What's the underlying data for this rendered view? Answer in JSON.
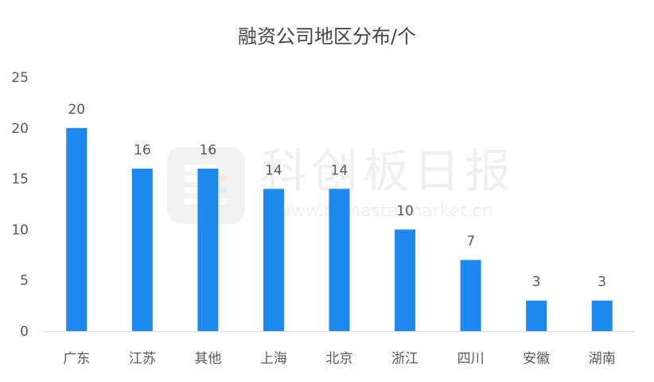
{
  "chart_data": {
    "type": "bar",
    "title": "融资公司地区分布/个",
    "categories": [
      "广东",
      "江苏",
      "其他",
      "上海",
      "北京",
      "浙江",
      "四川",
      "安徽",
      "湖南"
    ],
    "values": [
      20,
      16,
      16,
      14,
      14,
      10,
      7,
      3,
      3
    ],
    "ylim": [
      0,
      25
    ],
    "yticks": [
      0,
      5,
      10,
      15,
      20,
      25
    ],
    "xlabel": "",
    "ylabel": "",
    "grid": false,
    "data_labels": true,
    "bar_color": "#1f87f0"
  },
  "watermark": {
    "name": "科创板日报",
    "url": "www.chinastarmarket.cn"
  },
  "colors": {
    "axis": "#d9d9d9",
    "text": "#595959",
    "title": "#444444"
  }
}
